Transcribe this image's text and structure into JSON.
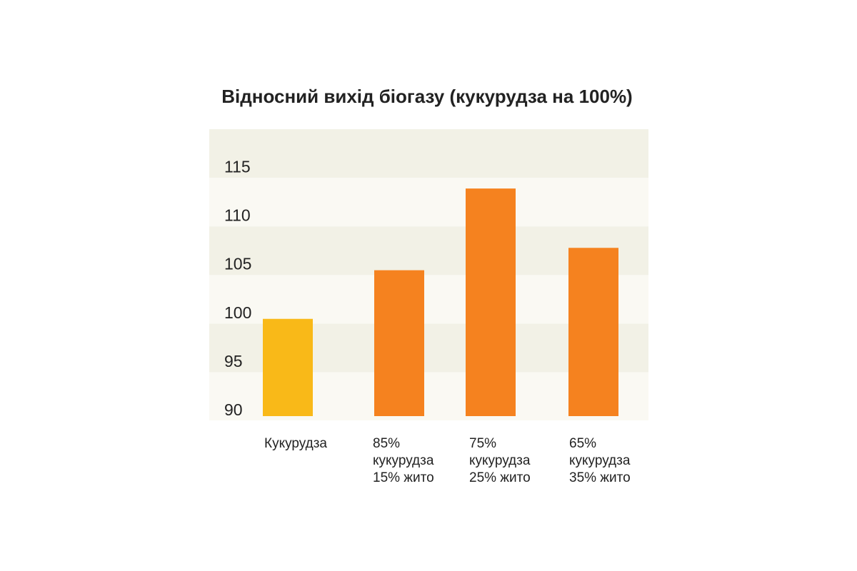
{
  "chart_data": {
    "type": "bar",
    "title": "Відносний вихід біогазу (кукурудза на 100%)",
    "categories": [
      [
        "Кукурудза"
      ],
      [
        "85%",
        "кукурудза",
        "15% жито"
      ],
      [
        "75%",
        "кукурудза",
        "25% жито"
      ],
      [
        "65%",
        "кукурудза",
        "35% жито"
      ]
    ],
    "values": [
      100,
      105,
      113.4,
      107.3
    ],
    "colors": [
      "#f9b918",
      "#f5821f",
      "#f5821f",
      "#f5821f"
    ],
    "ylim": [
      90,
      119.5
    ],
    "yticks": [
      90,
      95,
      100,
      105,
      110,
      115
    ]
  }
}
